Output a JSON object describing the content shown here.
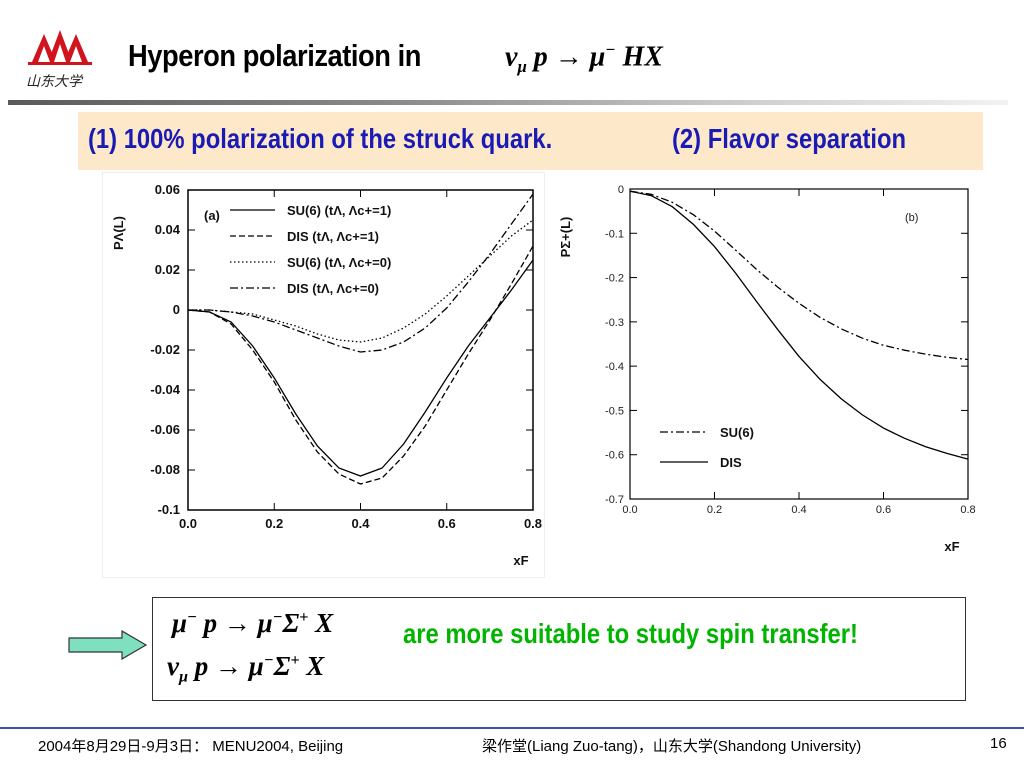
{
  "header": {
    "title": "Hyperon polarization in",
    "formula_html": "ν<sub style=\"font-size:0.6em\">μ</sub> p → μ<sup style=\"font-size:0.6em\">−</sup> HX",
    "logo_text": "山东大学"
  },
  "banner": {
    "left_text": "(1) 100% polarization of the struck quark.",
    "right_text": "(2) Flavor separation"
  },
  "chart_data": [
    {
      "type": "line",
      "panel_label": "(a)",
      "ylabel": "PΛ(L)",
      "xlabel": "xF",
      "xlim": [
        0.0,
        0.8
      ],
      "ylim": [
        -0.1,
        0.06
      ],
      "x_ticks": [
        "0.0",
        "0.2",
        "0.4",
        "0.6",
        "0.8"
      ],
      "y_ticks": [
        "0.06",
        "0.04",
        "0.02",
        "0",
        "-0.02",
        "-0.04",
        "-0.06",
        "-0.08",
        "-0.1"
      ],
      "x": [
        0.0,
        0.05,
        0.1,
        0.15,
        0.2,
        0.25,
        0.3,
        0.35,
        0.4,
        0.45,
        0.5,
        0.55,
        0.6,
        0.65,
        0.7,
        0.75,
        0.8
      ],
      "series": [
        {
          "name": "SU(6) (tΛ, Λc+=1)",
          "style": "solid",
          "values": [
            0.0,
            -0.001,
            -0.006,
            -0.018,
            -0.034,
            -0.052,
            -0.068,
            -0.079,
            -0.083,
            -0.079,
            -0.067,
            -0.051,
            -0.034,
            -0.018,
            -0.004,
            0.01,
            0.025
          ]
        },
        {
          "name": "DIS (tΛ, Λc+=1)",
          "style": "dashed",
          "values": [
            0.0,
            -0.001,
            -0.007,
            -0.02,
            -0.036,
            -0.055,
            -0.071,
            -0.082,
            -0.087,
            -0.084,
            -0.073,
            -0.058,
            -0.04,
            -0.022,
            -0.005,
            0.013,
            0.032
          ]
        },
        {
          "name": "SU(6) (tΛ, Λc+=0)",
          "style": "dotted",
          "values": [
            0.0,
            0.0,
            -0.001,
            -0.002,
            -0.005,
            -0.008,
            -0.012,
            -0.015,
            -0.016,
            -0.014,
            -0.009,
            -0.002,
            0.007,
            0.017,
            0.027,
            0.037,
            0.045
          ]
        },
        {
          "name": "DIS (tΛ, Λc+=0)",
          "style": "dashdot",
          "values": [
            0.0,
            0.0,
            -0.001,
            -0.003,
            -0.006,
            -0.01,
            -0.014,
            -0.018,
            -0.021,
            -0.02,
            -0.016,
            -0.009,
            0.001,
            0.014,
            0.028,
            0.043,
            0.058
          ]
        }
      ]
    },
    {
      "type": "line",
      "panel_label": "(b)",
      "ylabel": "PΣ+(L)",
      "xlabel": "xF",
      "xlim": [
        0.0,
        0.8
      ],
      "ylim": [
        -0.7,
        0.0
      ],
      "x_ticks": [
        "0.0",
        "0.2",
        "0.4",
        "0.6",
        "0.8"
      ],
      "y_ticks": [
        "0",
        "-0.1",
        "-0.2",
        "-0.3",
        "-0.4",
        "-0.5",
        "-0.6",
        "-0.7"
      ],
      "x": [
        0.0,
        0.05,
        0.1,
        0.15,
        0.2,
        0.25,
        0.3,
        0.35,
        0.4,
        0.45,
        0.5,
        0.55,
        0.6,
        0.65,
        0.7,
        0.75,
        0.8
      ],
      "series": [
        {
          "name": "SU(6)",
          "style": "dashdot",
          "values": [
            -0.005,
            -0.012,
            -0.03,
            -0.058,
            -0.095,
            -0.138,
            -0.182,
            -0.222,
            -0.258,
            -0.29,
            -0.316,
            -0.337,
            -0.353,
            -0.364,
            -0.373,
            -0.38,
            -0.385
          ]
        },
        {
          "name": "DIS",
          "style": "solid",
          "values": [
            -0.005,
            -0.015,
            -0.04,
            -0.08,
            -0.13,
            -0.19,
            -0.255,
            -0.318,
            -0.378,
            -0.43,
            -0.474,
            -0.51,
            -0.54,
            -0.563,
            -0.582,
            -0.597,
            -0.61
          ]
        }
      ]
    }
  ],
  "box": {
    "formula1_html": "μ<sup style=\"font-size:0.6em\">−</sup> p → μ<sup style=\"font-size:0.6em\">−</sup>Σ<sup style=\"font-size:0.6em\">+</sup> X",
    "formula2_html": "ν<sub style=\"font-size:0.6em\">μ</sub> p → μ<sup style=\"font-size:0.6em\">−</sup>Σ<sup style=\"font-size:0.6em\">+</sup> X",
    "statement": "are more suitable to study spin transfer!"
  },
  "footer": {
    "date_event": "2004年8月29日-9月3日： MENU2004, Beijing",
    "author": "梁作堂(Liang Zuo-tang)，山东大学(Shandong University)",
    "page_number": "16"
  },
  "colors": {
    "banner_bg": "#fde9c9",
    "banner_text": "#1a1ab4",
    "statement_text": "#00b400",
    "arrow_fill": "#7fe0c0",
    "logo_red": "#d0141e",
    "footer_rule": "#3a4fb0"
  }
}
